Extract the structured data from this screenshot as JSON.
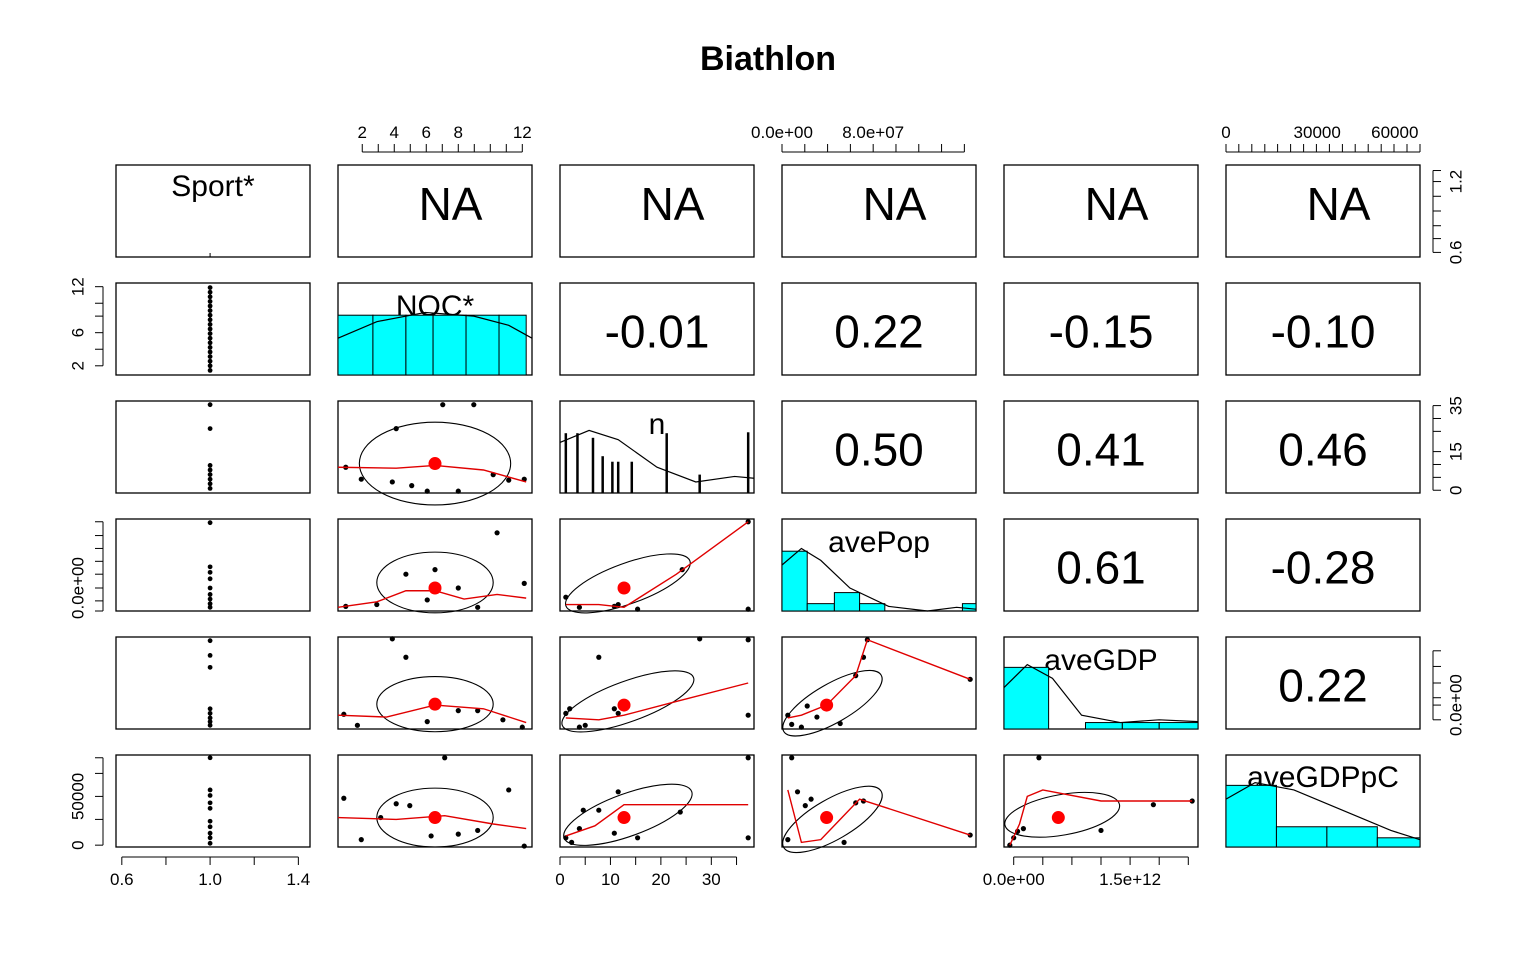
{
  "chart_data": {
    "type": "scatter",
    "title": "Biathlon",
    "variables": [
      "Sport*",
      "NOC*",
      "n",
      "avePop",
      "aveGDP",
      "aveGDPpC"
    ],
    "na_label": "NA",
    "correlations": [
      {
        "row": 1,
        "col": 2,
        "value": "-0.01"
      },
      {
        "row": 1,
        "col": 3,
        "value": "0.22"
      },
      {
        "row": 1,
        "col": 4,
        "value": "-0.15"
      },
      {
        "row": 1,
        "col": 5,
        "value": "-0.10"
      },
      {
        "row": 2,
        "col": 3,
        "value": "0.50"
      },
      {
        "row": 2,
        "col": 4,
        "value": "0.41"
      },
      {
        "row": 2,
        "col": 5,
        "value": "0.46"
      },
      {
        "row": 3,
        "col": 4,
        "value": "0.61"
      },
      {
        "row": 3,
        "col": 5,
        "value": "-0.28"
      },
      {
        "row": 4,
        "col": 5,
        "value": "0.22"
      }
    ],
    "axes": {
      "top": [
        {
          "col": 1,
          "ticks": [
            "2",
            "4",
            "6",
            "8",
            "12"
          ]
        },
        {
          "col": 3,
          "ticks": [
            "0.0e+00",
            "8.0e+07"
          ]
        },
        {
          "col": 5,
          "ticks": [
            "0",
            "30000",
            "60000"
          ]
        }
      ],
      "bottom": [
        {
          "col": 0,
          "ticks": [
            "0.6",
            "1.0",
            "1.4"
          ]
        },
        {
          "col": 2,
          "ticks": [
            "0",
            "10",
            "20",
            "30"
          ]
        },
        {
          "col": 4,
          "ticks": [
            "0.0e+00",
            "1.5e+12"
          ]
        }
      ],
      "left": [
        {
          "row": 1,
          "ticks": [
            "2",
            "6",
            "12"
          ]
        },
        {
          "row": 3,
          "ticks": [
            "0.0e+00"
          ]
        },
        {
          "row": 5,
          "ticks": [
            "0",
            "50000"
          ]
        }
      ],
      "right": [
        {
          "row": 0,
          "ticks": [
            "0.6",
            "1.2"
          ]
        },
        {
          "row": 2,
          "ticks": [
            "0",
            "15",
            "35"
          ]
        },
        {
          "row": 4,
          "ticks": [
            "0.0e+00"
          ]
        }
      ]
    },
    "colors": {
      "histogram": "#00ffff",
      "smooth": "#e00000",
      "mean_point": "#ff0000",
      "points": "#000000"
    },
    "grid": false
  }
}
